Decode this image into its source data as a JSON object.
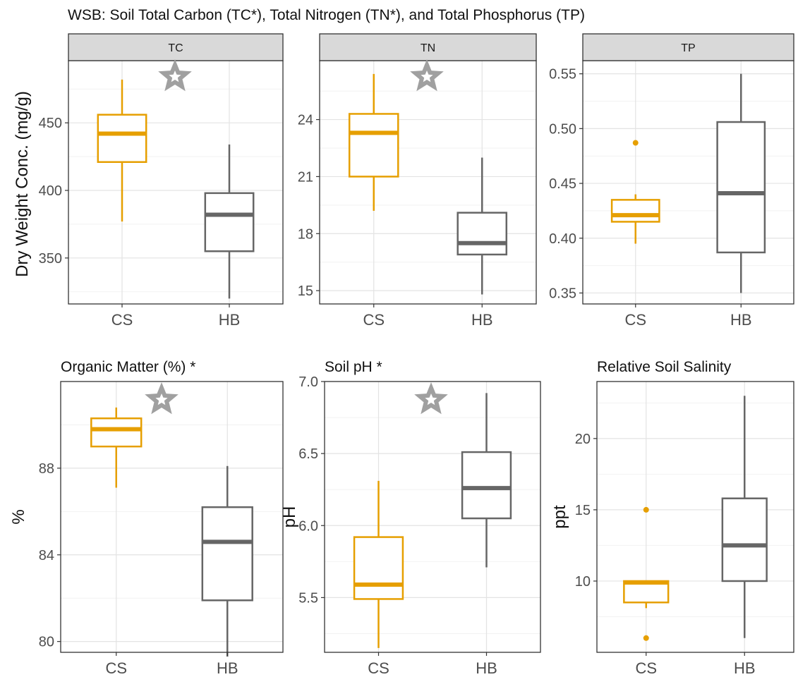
{
  "figure": {
    "title": "WSB: Soil Total Carbon (TC*), Total Nitrogen (TN*), and Total Phosphorus (TP)",
    "shared_ylabel": "Dry Weight Conc. (mg/g)"
  },
  "colors": {
    "CS": "#E69F00",
    "HB": "#666666",
    "star": "#A0A0A0",
    "strip": "#D9D9D9",
    "grid_major": "#E3E3E3",
    "grid_minor": "#F2F2F2"
  },
  "chart_data": [
    {
      "type": "box",
      "strip_label": "TC",
      "title": "",
      "ylabel": "",
      "categories": [
        "CS",
        "HB"
      ],
      "ylim": [
        316,
        496
      ],
      "yticks": [
        350,
        400,
        450
      ],
      "ytick_labels": [
        "350",
        "400",
        "450"
      ],
      "significance_star": true,
      "boxes": [
        {
          "group": "CS",
          "min": 377,
          "q1": 421,
          "median": 442,
          "q3": 456,
          "max": 482,
          "outliers": []
        },
        {
          "group": "HB",
          "min": 320,
          "q1": 355,
          "median": 382,
          "q3": 398,
          "max": 434,
          "outliers": []
        }
      ]
    },
    {
      "type": "box",
      "strip_label": "TN",
      "title": "",
      "ylabel": "",
      "categories": [
        "CS",
        "HB"
      ],
      "ylim": [
        14.3,
        27.1
      ],
      "yticks": [
        15,
        18,
        21,
        24
      ],
      "ytick_labels": [
        "15",
        "18",
        "21",
        "24"
      ],
      "significance_star": true,
      "boxes": [
        {
          "group": "CS",
          "min": 19.2,
          "q1": 21.0,
          "median": 23.3,
          "q3": 24.3,
          "max": 26.4,
          "outliers": []
        },
        {
          "group": "HB",
          "min": 14.8,
          "q1": 16.9,
          "median": 17.5,
          "q3": 19.1,
          "max": 22.0,
          "outliers": []
        }
      ]
    },
    {
      "type": "box",
      "strip_label": "TP",
      "title": "",
      "ylabel": "",
      "categories": [
        "CS",
        "HB"
      ],
      "ylim": [
        0.34,
        0.562
      ],
      "yticks": [
        0.35,
        0.4,
        0.45,
        0.5,
        0.55
      ],
      "ytick_labels": [
        "0.35",
        "0.40",
        "0.45",
        "0.50",
        "0.55"
      ],
      "significance_star": false,
      "boxes": [
        {
          "group": "CS",
          "min": 0.395,
          "q1": 0.415,
          "median": 0.421,
          "q3": 0.435,
          "max": 0.44,
          "outliers": [
            0.487
          ]
        },
        {
          "group": "HB",
          "min": 0.35,
          "q1": 0.387,
          "median": 0.441,
          "q3": 0.506,
          "max": 0.55,
          "outliers": []
        }
      ]
    },
    {
      "type": "box",
      "strip_label": "",
      "title": "Organic Matter (%) *",
      "ylabel": "%",
      "categories": [
        "CS",
        "HB"
      ],
      "ylim": [
        79.5,
        92.0
      ],
      "yticks": [
        80,
        84,
        88
      ],
      "ytick_labels": [
        "80",
        "84",
        "88"
      ],
      "significance_star": true,
      "boxes": [
        {
          "group": "CS",
          "min": 87.1,
          "q1": 89.0,
          "median": 89.8,
          "q3": 90.3,
          "max": 90.8,
          "outliers": []
        },
        {
          "group": "HB",
          "min": 79.3,
          "q1": 81.9,
          "median": 84.6,
          "q3": 86.2,
          "max": 88.1,
          "outliers": []
        }
      ]
    },
    {
      "type": "box",
      "strip_label": "",
      "title": "Soil pH *",
      "ylabel": "pH",
      "categories": [
        "CS",
        "HB"
      ],
      "ylim": [
        5.12,
        7.0
      ],
      "yticks": [
        5.5,
        6.0,
        6.5,
        7.0
      ],
      "ytick_labels": [
        "5.5",
        "6.0",
        "6.5",
        "7.0"
      ],
      "significance_star": true,
      "boxes": [
        {
          "group": "CS",
          "min": 5.15,
          "q1": 5.49,
          "median": 5.59,
          "q3": 5.92,
          "max": 6.31,
          "outliers": []
        },
        {
          "group": "HB",
          "min": 5.71,
          "q1": 6.05,
          "median": 6.26,
          "q3": 6.51,
          "max": 6.92,
          "outliers": []
        }
      ]
    },
    {
      "type": "box",
      "strip_label": "",
      "title": "Relative Soil Salinity",
      "ylabel": "ppt",
      "categories": [
        "CS",
        "HB"
      ],
      "ylim": [
        5.0,
        24.0
      ],
      "yticks": [
        10,
        15,
        20
      ],
      "ytick_labels": [
        "10",
        "15",
        "20"
      ],
      "significance_star": false,
      "boxes": [
        {
          "group": "CS",
          "min": 8.1,
          "q1": 8.5,
          "median": 9.9,
          "q3": 10.0,
          "max": 10.0,
          "outliers": [
            15.0,
            6.0
          ]
        },
        {
          "group": "HB",
          "min": 6.0,
          "q1": 10.0,
          "median": 12.5,
          "q3": 15.8,
          "max": 23.0,
          "outliers": []
        }
      ]
    }
  ]
}
